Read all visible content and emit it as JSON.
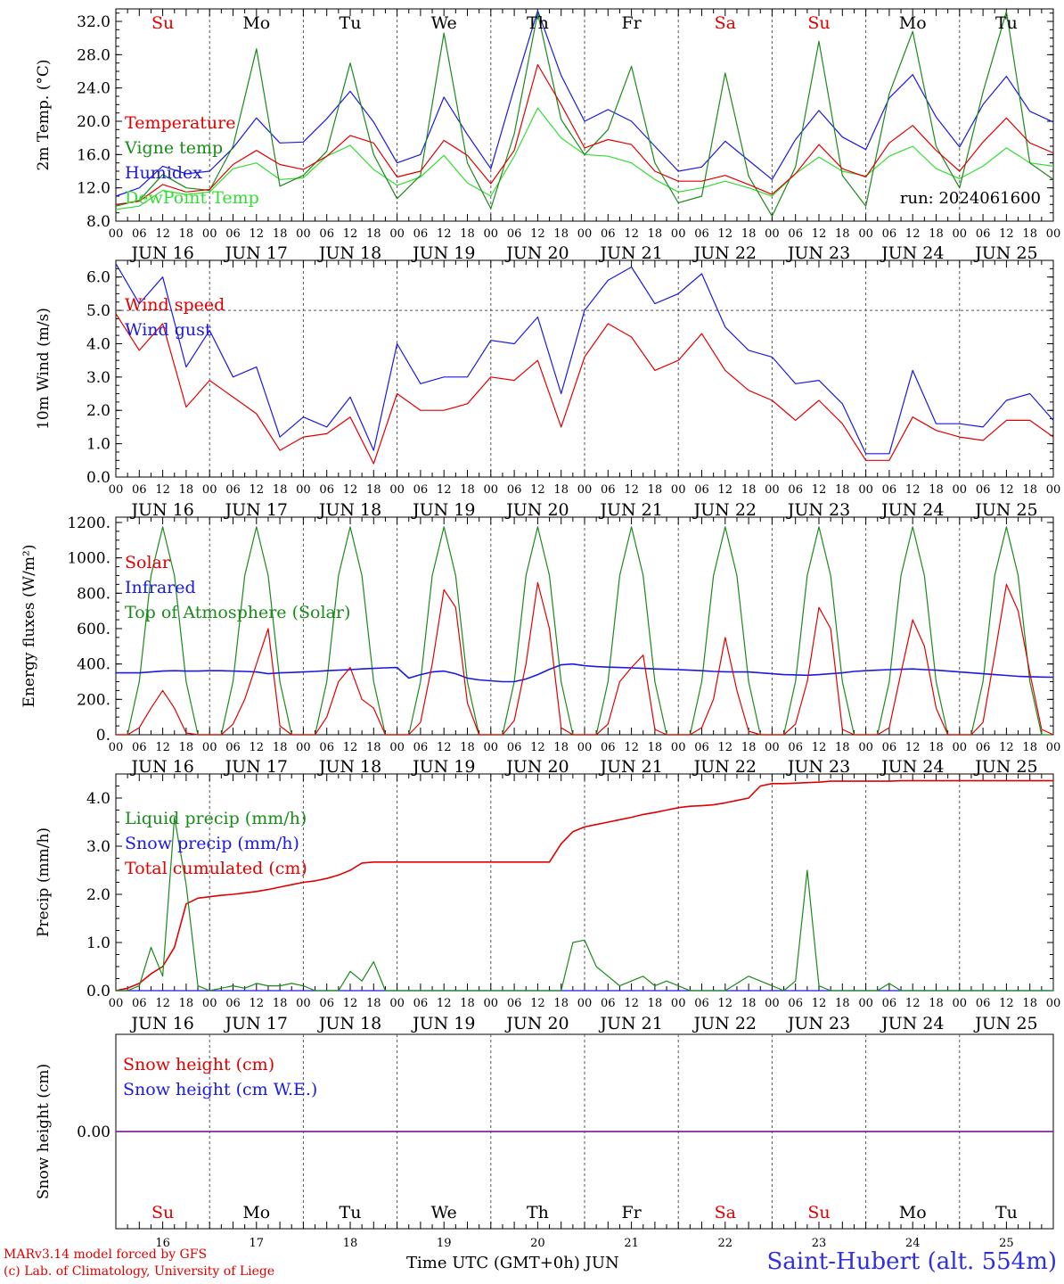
{
  "run_label": "run: 2024061600",
  "month": "JUN",
  "dates": [
    "16",
    "17",
    "18",
    "19",
    "20",
    "21",
    "22",
    "23",
    "24",
    "25"
  ],
  "weekdays": [
    "Su",
    "Mo",
    "Tu",
    "We",
    "Th",
    "Fr",
    "Sa",
    "Su",
    "Mo",
    "Tu"
  ],
  "weekend_color": "#e00000",
  "hour_ticks": [
    "00",
    "06",
    "12",
    "18"
  ],
  "end_hour_label": "00",
  "bottom_axis_title": "Time UTC (GMT+0h)",
  "credits": {
    "line1": "MARv3.14 model forced by GFS",
    "line2": "(c) Lab. of Climatology, University of Liege"
  },
  "station": "Saint-Hubert (alt. 554m)",
  "colors": {
    "red": "#e00000",
    "green": "#1a8a1a",
    "blue": "#1a1ae0",
    "light_green": "#33dd33",
    "purple": "#7b2a9e"
  },
  "chart_data": [
    {
      "type": "line",
      "ylabel": "2m Temp. (°C)",
      "ylim": [
        8,
        33.5
      ],
      "yticks": [
        8,
        12,
        16,
        20,
        24,
        28,
        32
      ],
      "ytick_labels": [
        "8.0",
        "12.0",
        "16.0",
        "20.0",
        "24.0",
        "28.0",
        "32.0"
      ],
      "show_weekdays": true,
      "x_hours": [
        0,
        6,
        12,
        18,
        24,
        30,
        36,
        42,
        48,
        54,
        60,
        66,
        72,
        78,
        84,
        90,
        96,
        102,
        108,
        114,
        120,
        126,
        132,
        138,
        144,
        150,
        156,
        162,
        168,
        174,
        180,
        186,
        192,
        198,
        204,
        210,
        216,
        222,
        228,
        234,
        240
      ],
      "series": [
        {
          "name": "Temperature",
          "color": "red",
          "values": [
            10.0,
            10.4,
            12.4,
            11.5,
            11.8,
            14.8,
            16.5,
            14.8,
            14.2,
            15.8,
            18.3,
            17.4,
            13.3,
            14.0,
            17.7,
            15.9,
            12.5,
            16.5,
            26.8,
            22.0,
            16.8,
            17.8,
            17.2,
            14.0,
            12.8,
            12.8,
            13.5,
            12.4,
            11.2,
            13.7,
            17.2,
            14.3,
            13.3,
            17.4,
            19.5,
            16.5,
            14.0,
            17.5,
            20.4,
            17.4,
            16.2
          ]
        },
        {
          "name": "Vigne temp",
          "color": "green",
          "values": [
            9.8,
            10.5,
            13.6,
            12.0,
            11.7,
            17.0,
            28.7,
            12.2,
            13.5,
            16.4,
            27.0,
            16.0,
            10.7,
            13.5,
            30.6,
            15.0,
            9.5,
            18.5,
            33.0,
            20.2,
            16.0,
            19.0,
            26.6,
            15.0,
            10.2,
            11.0,
            25.8,
            13.4,
            8.6,
            14.5,
            29.6,
            13.5,
            9.8,
            23.3,
            30.8,
            17.0,
            12.0,
            23.5,
            33.2,
            15.0,
            13.0
          ]
        },
        {
          "name": "Humidex",
          "color": "blue",
          "values": [
            11.0,
            12.0,
            14.6,
            13.7,
            14.0,
            16.8,
            20.4,
            17.4,
            17.5,
            20.3,
            23.6,
            19.9,
            15.0,
            16.0,
            22.9,
            18.4,
            14.3,
            24.0,
            33.3,
            25.5,
            20.0,
            21.4,
            20.0,
            17.0,
            14.0,
            14.5,
            17.6,
            15.3,
            13.0,
            17.8,
            21.3,
            18.1,
            16.6,
            22.8,
            25.6,
            20.5,
            16.9,
            22.0,
            25.4,
            21.2,
            19.9
          ]
        },
        {
          "name": "DewPoint Temp",
          "color": "light_green",
          "values": [
            9.4,
            9.8,
            11.7,
            11.2,
            11.5,
            14.3,
            15.0,
            13.0,
            13.2,
            15.8,
            17.1,
            14.2,
            12.3,
            13.3,
            15.9,
            12.6,
            11.0,
            15.8,
            21.6,
            18.0,
            16.0,
            15.8,
            15.0,
            13.0,
            11.5,
            12.0,
            12.8,
            12.0,
            11.0,
            13.7,
            15.7,
            14.0,
            13.4,
            15.8,
            17.0,
            14.3,
            13.1,
            14.6,
            16.8,
            15.0,
            14.6
          ]
        }
      ]
    },
    {
      "type": "line",
      "ylabel": "10m Wind (m/s)",
      "ylim": [
        0,
        6.5
      ],
      "yticks": [
        0,
        1,
        2,
        3,
        4,
        5,
        6
      ],
      "ytick_labels": [
        "0.0",
        "1.0",
        "2.0",
        "3.0",
        "4.0",
        "5.0",
        "6.0"
      ],
      "ref_line": 5.0,
      "x_hours": [
        0,
        6,
        12,
        18,
        24,
        30,
        36,
        42,
        48,
        54,
        60,
        66,
        72,
        78,
        84,
        90,
        96,
        102,
        108,
        114,
        120,
        126,
        132,
        138,
        144,
        150,
        156,
        162,
        168,
        174,
        180,
        186,
        192,
        198,
        204,
        210,
        216,
        222,
        228,
        234,
        240
      ],
      "series": [
        {
          "name": "Wind speed",
          "color": "red",
          "values": [
            4.9,
            3.8,
            4.6,
            2.1,
            2.9,
            2.4,
            1.9,
            0.8,
            1.2,
            1.3,
            1.8,
            0.4,
            2.5,
            2.0,
            2.0,
            2.2,
            3.0,
            2.9,
            3.5,
            1.5,
            3.6,
            4.6,
            4.2,
            3.2,
            3.5,
            4.3,
            3.2,
            2.6,
            2.3,
            1.7,
            2.3,
            1.6,
            0.5,
            0.5,
            1.8,
            1.4,
            1.2,
            1.1,
            1.7,
            1.7,
            1.2
          ]
        },
        {
          "name": "Wind gust",
          "color": "blue",
          "values": [
            6.4,
            5.2,
            6.0,
            3.3,
            4.4,
            3.0,
            3.3,
            1.2,
            1.8,
            1.5,
            2.4,
            0.8,
            4.0,
            2.8,
            3.0,
            3.0,
            4.1,
            4.0,
            4.8,
            2.5,
            5.0,
            5.9,
            6.3,
            5.2,
            5.5,
            6.1,
            4.5,
            3.8,
            3.6,
            2.8,
            2.9,
            2.2,
            0.7,
            0.7,
            3.2,
            1.6,
            1.6,
            1.5,
            2.3,
            2.5,
            1.7
          ]
        }
      ]
    },
    {
      "type": "line",
      "ylabel": "Energy fluxes (W/m²)",
      "ylim": [
        0,
        1230
      ],
      "yticks": [
        0,
        200,
        400,
        600,
        800,
        1000,
        1200
      ],
      "ytick_labels": [
        "0.",
        "200.",
        "400.",
        "600.",
        "800.",
        "1000.",
        "1200."
      ],
      "x_hours": [
        0,
        3,
        6,
        9,
        12,
        15,
        18,
        21,
        24,
        27,
        30,
        33,
        36,
        39,
        42,
        45,
        48,
        51,
        54,
        57,
        60,
        63,
        66,
        69,
        72,
        75,
        78,
        81,
        84,
        87,
        90,
        93,
        96,
        99,
        102,
        105,
        108,
        111,
        114,
        117,
        120,
        123,
        126,
        129,
        132,
        135,
        138,
        141,
        144,
        147,
        150,
        153,
        156,
        159,
        162,
        165,
        168,
        171,
        174,
        177,
        180,
        183,
        186,
        189,
        192,
        195,
        198,
        201,
        204,
        207,
        210,
        213,
        216,
        219,
        222,
        225,
        228,
        231,
        234,
        237,
        240
      ],
      "series": [
        {
          "name": "Solar",
          "color": "red",
          "values": [
            0,
            0,
            40,
            150,
            250,
            150,
            10,
            0,
            0,
            0,
            60,
            200,
            400,
            600,
            50,
            0,
            0,
            0,
            100,
            300,
            380,
            200,
            150,
            0,
            0,
            0,
            70,
            400,
            820,
            720,
            180,
            0,
            0,
            0,
            80,
            400,
            860,
            600,
            40,
            0,
            0,
            0,
            60,
            300,
            380,
            450,
            30,
            0,
            0,
            0,
            40,
            200,
            550,
            250,
            20,
            0,
            0,
            0,
            60,
            300,
            720,
            600,
            30,
            0,
            0,
            0,
            40,
            350,
            650,
            500,
            150,
            0,
            0,
            0,
            70,
            450,
            850,
            700,
            350,
            30,
            0
          ]
        },
        {
          "name": "Infrared",
          "color": "blue",
          "values": [
            350,
            350,
            350,
            355,
            360,
            362,
            360,
            360,
            362,
            362,
            360,
            358,
            355,
            345,
            350,
            352,
            355,
            358,
            362,
            365,
            368,
            372,
            375,
            378,
            380,
            320,
            340,
            355,
            360,
            345,
            320,
            310,
            305,
            300,
            300,
            315,
            340,
            370,
            395,
            400,
            390,
            385,
            382,
            380,
            378,
            375,
            372,
            370,
            368,
            365,
            362,
            358,
            356,
            355,
            355,
            350,
            345,
            340,
            338,
            336,
            340,
            345,
            350,
            358,
            362,
            365,
            368,
            370,
            372,
            368,
            365,
            360,
            355,
            350,
            345,
            340,
            335,
            330,
            328,
            326,
            325
          ]
        },
        {
          "name": "Top of Atmosphere (Solar)",
          "color": "green",
          "values": [
            0,
            0,
            300,
            900,
            1175,
            900,
            300,
            0,
            0,
            0,
            300,
            900,
            1175,
            900,
            300,
            0,
            0,
            0,
            300,
            900,
            1175,
            900,
            300,
            0,
            0,
            0,
            300,
            900,
            1175,
            900,
            300,
            0,
            0,
            0,
            300,
            900,
            1175,
            900,
            300,
            0,
            0,
            0,
            300,
            900,
            1175,
            900,
            300,
            0,
            0,
            0,
            300,
            900,
            1175,
            900,
            300,
            0,
            0,
            0,
            300,
            900,
            1175,
            900,
            300,
            0,
            0,
            0,
            300,
            900,
            1175,
            900,
            300,
            0,
            0,
            0,
            300,
            900,
            1175,
            900,
            300,
            0,
            0
          ]
        }
      ]
    },
    {
      "type": "line",
      "ylabel": "Precip (mm/h)",
      "ylim": [
        0,
        4.5
      ],
      "yticks": [
        0,
        1,
        2,
        3,
        4
      ],
      "ytick_labels": [
        "0.0",
        "1.0",
        "2.0",
        "3.0",
        "4.0"
      ],
      "x_hours": [
        0,
        3,
        6,
        9,
        12,
        15,
        18,
        21,
        24,
        27,
        30,
        33,
        36,
        39,
        42,
        45,
        48,
        51,
        54,
        57,
        60,
        63,
        66,
        69,
        72,
        75,
        78,
        81,
        84,
        87,
        90,
        93,
        96,
        99,
        102,
        105,
        108,
        111,
        114,
        117,
        120,
        123,
        126,
        129,
        132,
        135,
        138,
        141,
        144,
        147,
        150,
        153,
        156,
        159,
        162,
        165,
        168,
        171,
        174,
        177,
        180,
        183,
        186,
        189,
        192,
        195,
        198,
        201,
        204,
        207,
        210,
        213,
        216,
        219,
        222,
        225,
        228,
        231,
        234,
        237,
        240
      ],
      "series": [
        {
          "name": "Liquid precip (mm/h)",
          "color": "green",
          "values": [
            0,
            0,
            0.1,
            0.9,
            0.3,
            3.6,
            2.2,
            0.1,
            0,
            0.05,
            0.1,
            0.05,
            0.15,
            0.1,
            0.1,
            0.15,
            0.1,
            0,
            0,
            0,
            0.4,
            0.2,
            0.6,
            0,
            0,
            0,
            0,
            0,
            0,
            0,
            0,
            0,
            0,
            0,
            0,
            0,
            0,
            0,
            0,
            1.0,
            1.05,
            0.5,
            0.3,
            0.1,
            0.2,
            0.3,
            0.1,
            0.2,
            0.1,
            0,
            0,
            0,
            0,
            0.15,
            0.3,
            0.2,
            0.1,
            0,
            0.2,
            2.5,
            0.1,
            0,
            0,
            0,
            0,
            0,
            0.15,
            0,
            0,
            0,
            0,
            0,
            0,
            0,
            0,
            0,
            0,
            0,
            0,
            0,
            0
          ]
        },
        {
          "name": "Snow precip (mm/h)",
          "color": "blue",
          "values": [
            0,
            0,
            0,
            0,
            0,
            0,
            0,
            0,
            0,
            0,
            0,
            0,
            0,
            0,
            0,
            0,
            0,
            0,
            0,
            0,
            0,
            0,
            0,
            0,
            0,
            0,
            0,
            0,
            0,
            0,
            0,
            0,
            0,
            0,
            0,
            0,
            0,
            0,
            0,
            0,
            0,
            0,
            0,
            0,
            0,
            0,
            0,
            0,
            0,
            0,
            0,
            0,
            0,
            0,
            0,
            0,
            0,
            0,
            0,
            0,
            0,
            0,
            0,
            0,
            0,
            0,
            0,
            0,
            0,
            0,
            0,
            0,
            0,
            0,
            0,
            0,
            0,
            0,
            0,
            0,
            0
          ]
        },
        {
          "name": "Total cumulated (cm)",
          "color": "red",
          "values": [
            0,
            0.05,
            0.15,
            0.35,
            0.5,
            0.9,
            1.8,
            1.92,
            1.95,
            1.98,
            2.0,
            2.03,
            2.06,
            2.1,
            2.15,
            2.2,
            2.25,
            2.28,
            2.33,
            2.4,
            2.5,
            2.65,
            2.67,
            2.67,
            2.67,
            2.67,
            2.67,
            2.67,
            2.67,
            2.67,
            2.67,
            2.67,
            2.67,
            2.67,
            2.67,
            2.67,
            2.67,
            2.67,
            3.05,
            3.3,
            3.4,
            3.45,
            3.5,
            3.55,
            3.6,
            3.66,
            3.7,
            3.75,
            3.8,
            3.83,
            3.84,
            3.86,
            3.9,
            3.95,
            4.0,
            4.25,
            4.3,
            4.3,
            4.31,
            4.32,
            4.33,
            4.35,
            4.35,
            4.35,
            4.35,
            4.35,
            4.35,
            4.36,
            4.36,
            4.36,
            4.36,
            4.36,
            4.36,
            4.36,
            4.36,
            4.36,
            4.36,
            4.36,
            4.36,
            4.36,
            4.36
          ]
        }
      ]
    },
    {
      "type": "line",
      "ylabel": "Snow height (cm)",
      "ylim": [
        -1,
        1
      ],
      "yticks": [
        0
      ],
      "ytick_labels": [
        "0.00"
      ],
      "x_hours": [
        0,
        240
      ],
      "series": [
        {
          "name": "Snow height (cm)",
          "color": "red",
          "values": [
            0,
            0
          ]
        },
        {
          "name": "Snow height (cm W.E.)",
          "color": "blue",
          "values": [
            0,
            0
          ]
        }
      ]
    }
  ]
}
